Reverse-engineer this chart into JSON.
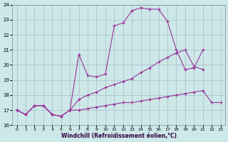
{
  "xlabel": "Windchill (Refroidissement éolien,°C)",
  "bg_color": "#cce8e8",
  "line_color": "#993399",
  "grid_color": "#aabbcc",
  "xlim": [
    -0.5,
    23.5
  ],
  "ylim": [
    16,
    24
  ],
  "yticks": [
    16,
    17,
    18,
    19,
    20,
    21,
    22,
    23,
    24
  ],
  "xticks": [
    0,
    1,
    2,
    3,
    4,
    5,
    6,
    7,
    8,
    9,
    10,
    11,
    12,
    13,
    14,
    15,
    16,
    17,
    18,
    19,
    20,
    21,
    22,
    23
  ],
  "line1_x": [
    0,
    1,
    2,
    3,
    4,
    5,
    6,
    7,
    8,
    9,
    10,
    11,
    12,
    13,
    14,
    15,
    16,
    17,
    18,
    19,
    20,
    21,
    22,
    23
  ],
  "line1_y": [
    17.0,
    16.7,
    17.3,
    17.3,
    16.7,
    16.6,
    17.0,
    17.0,
    17.1,
    17.2,
    17.3,
    17.4,
    17.5,
    17.5,
    17.6,
    17.7,
    17.8,
    17.9,
    18.0,
    18.1,
    18.2,
    18.3,
    17.5,
    17.5
  ],
  "line2_x": [
    0,
    1,
    2,
    3,
    4,
    5,
    6,
    7,
    8,
    9,
    10,
    11,
    12,
    13,
    14,
    15,
    16,
    17,
    18,
    19,
    20,
    21
  ],
  "line2_y": [
    17.0,
    16.7,
    17.3,
    17.3,
    16.7,
    16.6,
    17.0,
    20.7,
    19.3,
    19.2,
    19.4,
    22.6,
    22.8,
    23.6,
    23.8,
    23.7,
    23.7,
    22.9,
    21.0,
    19.7,
    19.8,
    21.0
  ],
  "line3_x": [
    0,
    1,
    2,
    3,
    4,
    5,
    6,
    7,
    8,
    9,
    10,
    11,
    12,
    13,
    14,
    15,
    16,
    17,
    18,
    19,
    20,
    21
  ],
  "line3_y": [
    17.0,
    16.7,
    17.3,
    17.3,
    16.7,
    16.6,
    17.0,
    17.7,
    18.0,
    18.2,
    18.5,
    18.7,
    18.9,
    19.1,
    19.5,
    19.8,
    20.2,
    20.5,
    20.8,
    21.0,
    19.9,
    19.7
  ]
}
